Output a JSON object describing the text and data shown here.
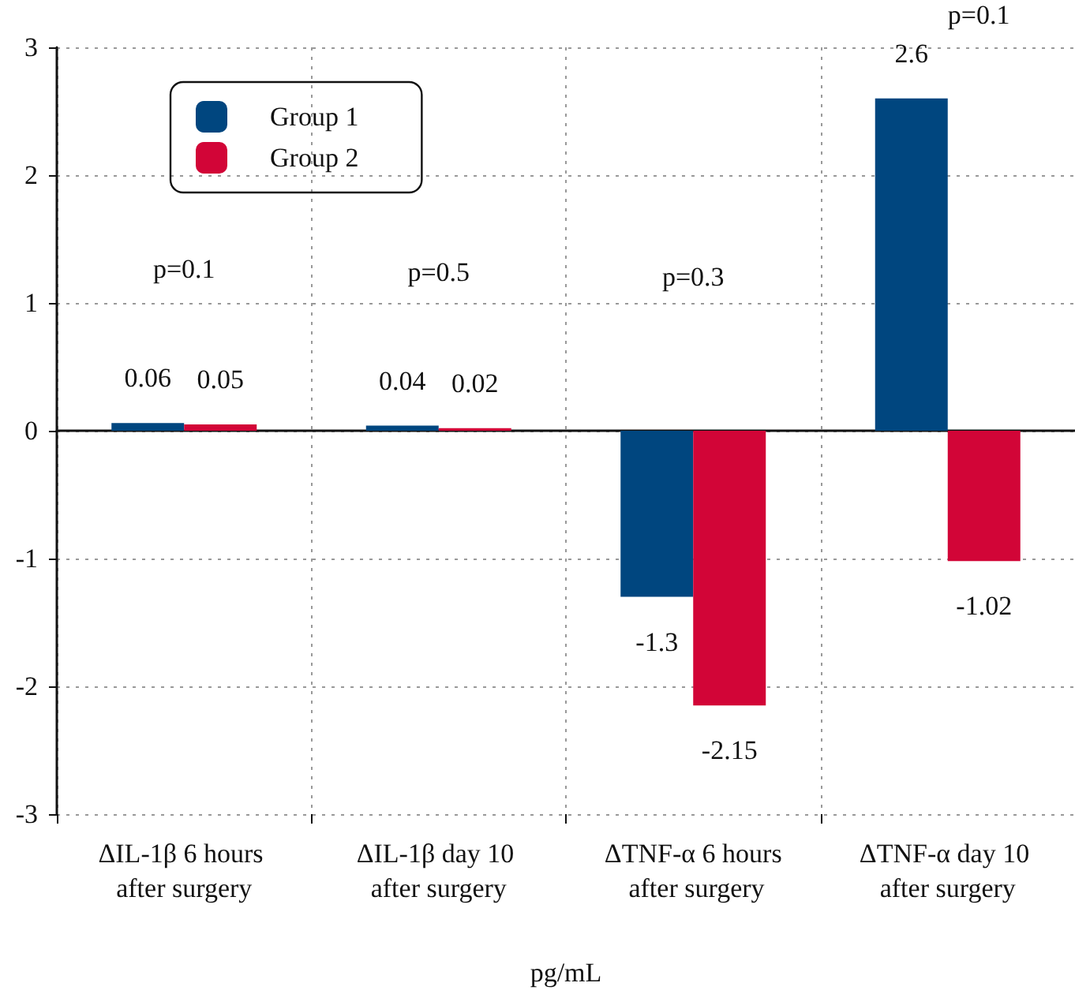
{
  "chart_data": {
    "type": "bar",
    "categories": [
      "ΔIL-1β 6 hours after surgery",
      "ΔIL-1β day 10 after surgery",
      "ΔTNF-α 6 hours after surgery",
      "ΔTNF-α day 10 after surgery"
    ],
    "series": [
      {
        "name": "Group 1",
        "color": "#00467f",
        "values": [
          0.06,
          0.04,
          -1.3,
          2.6
        ]
      },
      {
        "name": "Group 2",
        "color": "#d20537",
        "values": [
          0.05,
          0.02,
          -2.15,
          -1.02
        ]
      }
    ],
    "xlabel": "pg/mL",
    "ylim": [
      -3,
      3
    ],
    "yticks": [
      -3,
      -2,
      -1,
      0,
      1,
      2,
      3
    ],
    "grid": true,
    "legend": "top left",
    "data_labels": true,
    "annotations": [
      "p=0.1",
      "p=0.5",
      "p=0.3",
      "p=0.1"
    ]
  }
}
